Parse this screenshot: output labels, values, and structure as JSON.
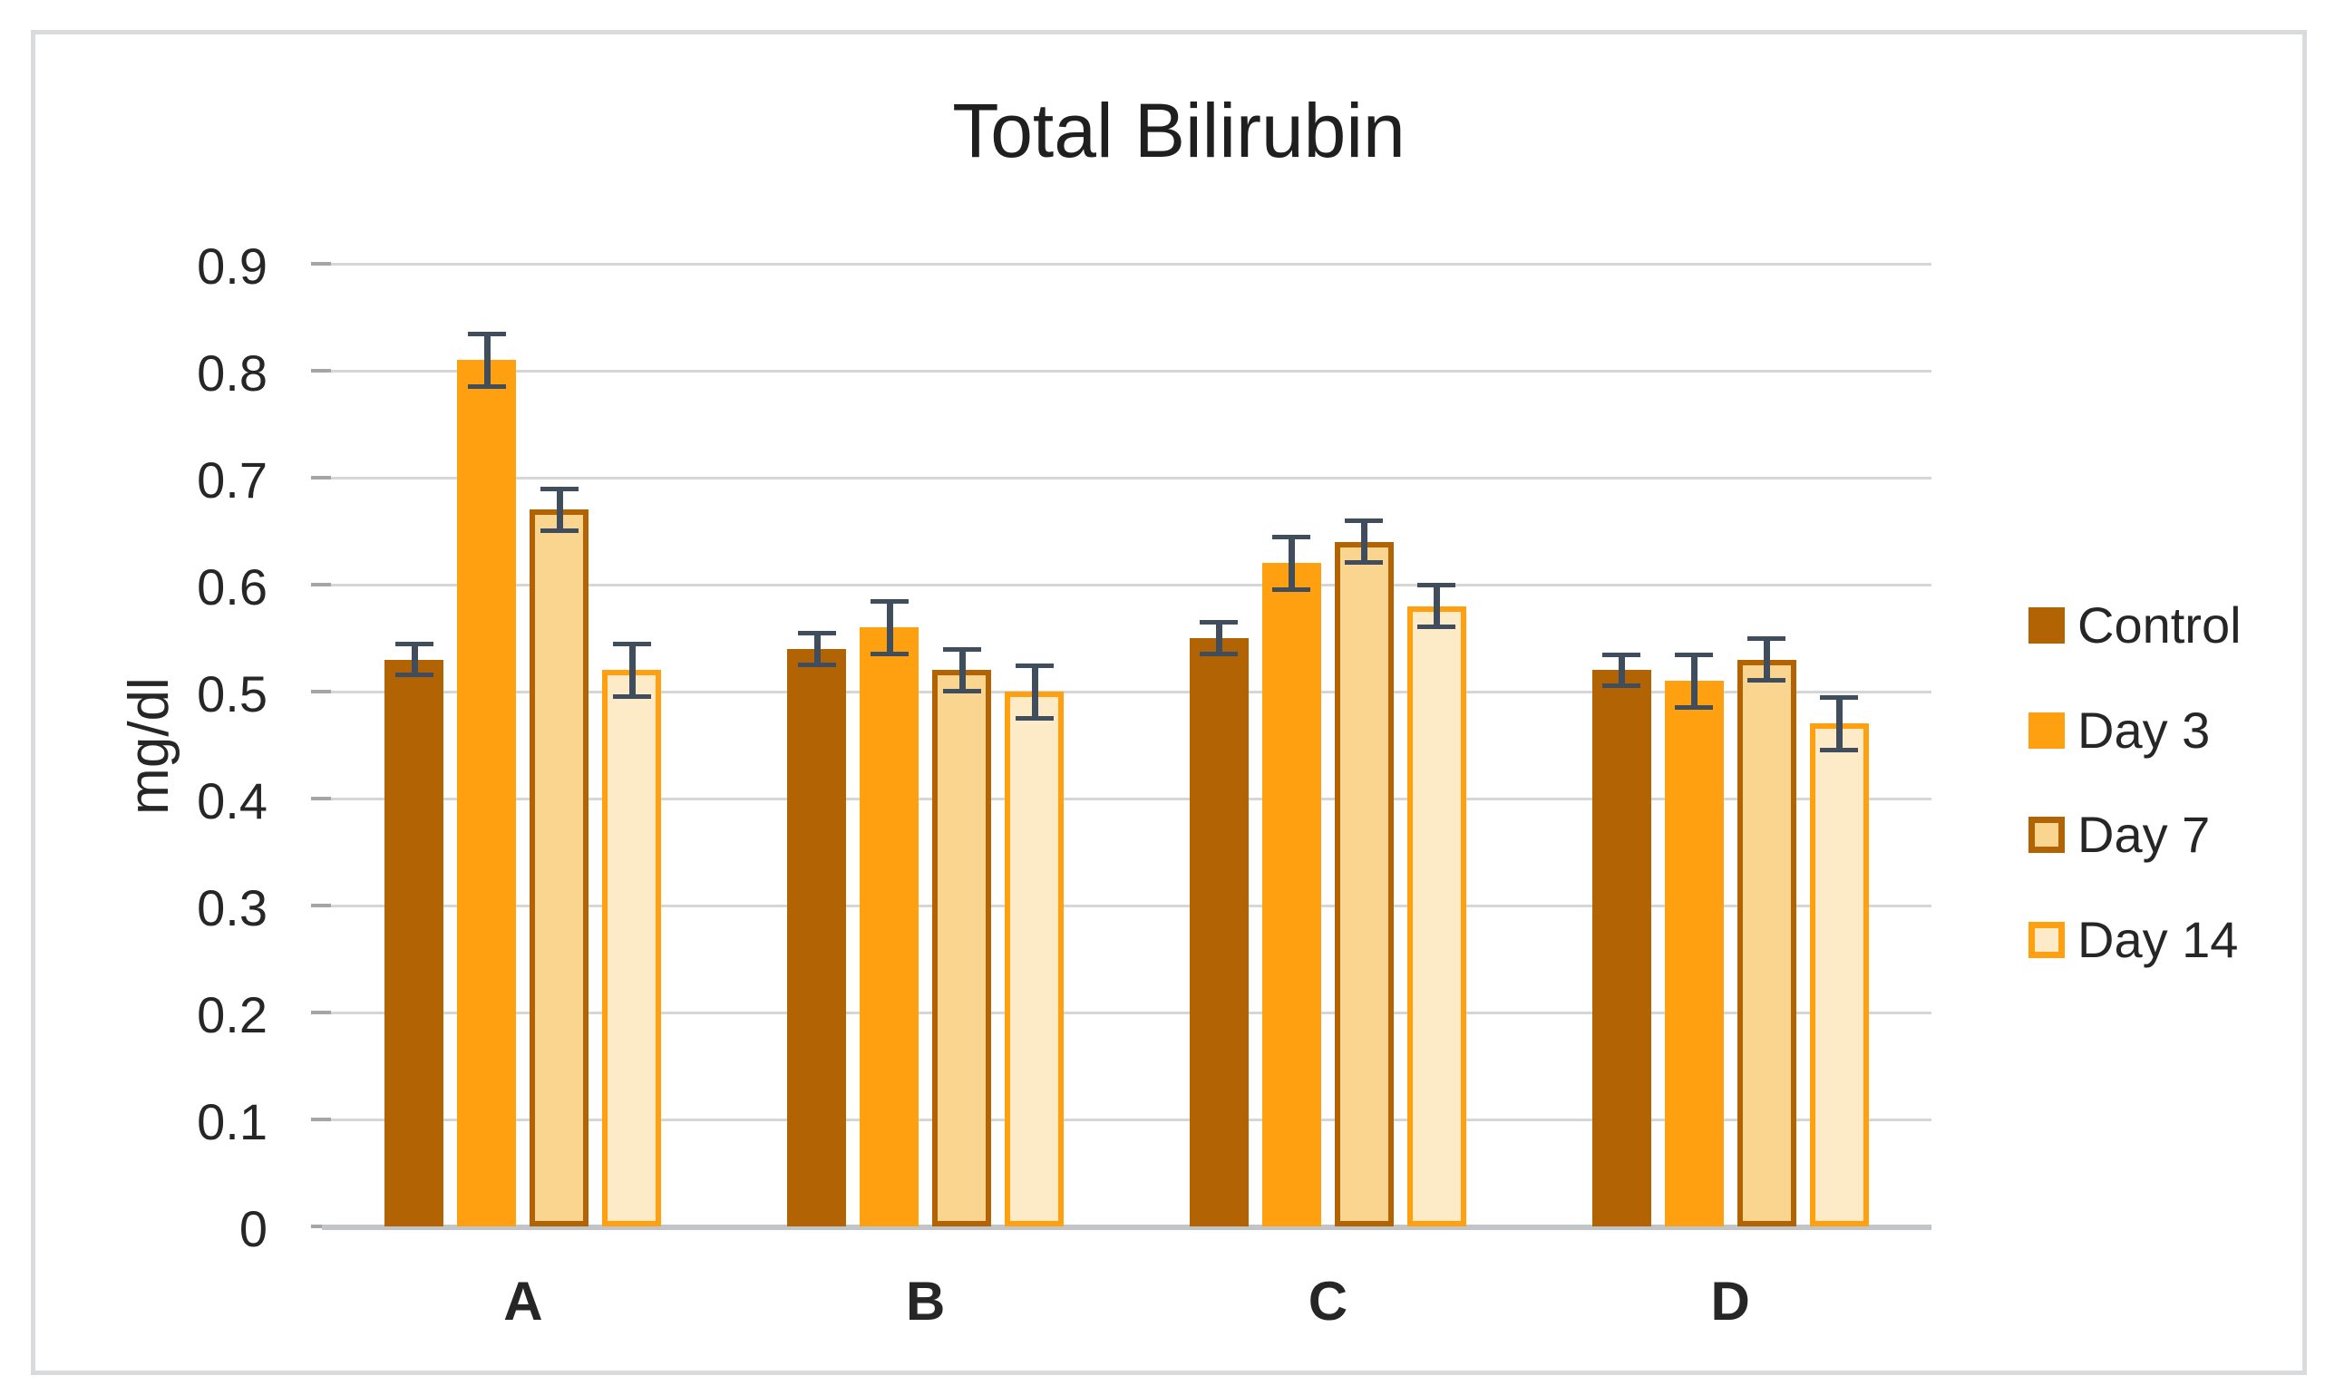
{
  "chart_data": {
    "type": "bar",
    "title": "Total Bilirubin",
    "ylabel": "mg/dl",
    "xlabel": "",
    "categories": [
      "A",
      "B",
      "C",
      "D"
    ],
    "series": [
      {
        "name": "Control",
        "fill": "#B26404",
        "border": "#B26404",
        "values": [
          0.53,
          0.54,
          0.55,
          0.52
        ],
        "errors": [
          0.015,
          0.015,
          0.015,
          0.015
        ]
      },
      {
        "name": "Day 3",
        "fill": "#FFA010",
        "border": "#FFA010",
        "values": [
          0.81,
          0.56,
          0.62,
          0.51
        ],
        "errors": [
          0.025,
          0.025,
          0.025,
          0.025
        ]
      },
      {
        "name": "Day 7",
        "fill": "#FAD590",
        "border": "#B26404",
        "values": [
          0.67,
          0.52,
          0.64,
          0.53
        ],
        "errors": [
          0.02,
          0.02,
          0.02,
          0.02
        ]
      },
      {
        "name": "Day 14",
        "fill": "#FDEBC8",
        "border": "#FFA010",
        "values": [
          0.52,
          0.5,
          0.58,
          0.47
        ],
        "errors": [
          0.025,
          0.025,
          0.02,
          0.025
        ]
      }
    ],
    "ylim": [
      0,
      0.9
    ],
    "yticks": [
      "0",
      "0.1",
      "0.2",
      "0.3",
      "0.4",
      "0.5",
      "0.6",
      "0.7",
      "0.8",
      "0.9"
    ],
    "grid": true,
    "legend_position": "right",
    "error_bars": true
  },
  "colors": {
    "control": "#B26404",
    "day3": "#FFA010",
    "day7_fill": "#FAD590",
    "day14_fill": "#FDEBC8",
    "error_bar": "#3F4D5C",
    "gridline": "#D6D6D6",
    "axis_line": "#C2C5C7",
    "tick": "#A5A5A5",
    "frame_border": "#D9DADB",
    "text": "#262626"
  }
}
